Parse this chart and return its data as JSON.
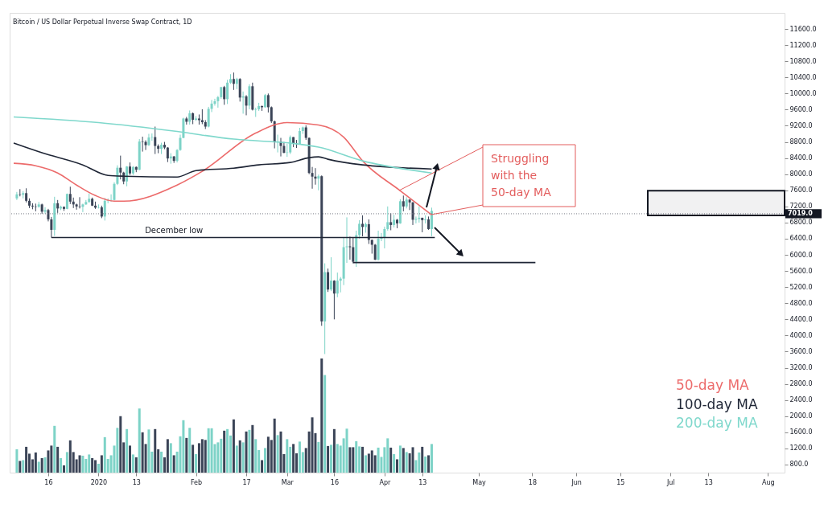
{
  "chart_data": {
    "type": "candlestick",
    "title": "Bitcoin / US Dollar Perpetual Inverse Swap Contract, 1D",
    "x": [
      "2019-12-06",
      "2019-12-07",
      "2019-12-08",
      "2019-12-09",
      "2019-12-10",
      "2019-12-11",
      "2019-12-12",
      "2019-12-13",
      "2019-12-14",
      "2019-12-15",
      "2019-12-16",
      "2019-12-17",
      "2019-12-18",
      "2019-12-19",
      "2019-12-20",
      "2019-12-21",
      "2019-12-22",
      "2019-12-23",
      "2019-12-24",
      "2019-12-25",
      "2019-12-26",
      "2019-12-27",
      "2019-12-28",
      "2019-12-29",
      "2019-12-30",
      "2019-12-31",
      "2020-01-01",
      "2020-01-02",
      "2020-01-03",
      "2020-01-04",
      "2020-01-05",
      "2020-01-06",
      "2020-01-07",
      "2020-01-08",
      "2020-01-09",
      "2020-01-10",
      "2020-01-11",
      "2020-01-12",
      "2020-01-13",
      "2020-01-14",
      "2020-01-15",
      "2020-01-16",
      "2020-01-17",
      "2020-01-18",
      "2020-01-19",
      "2020-01-20",
      "2020-01-21",
      "2020-01-22",
      "2020-01-23",
      "2020-01-24",
      "2020-01-25",
      "2020-01-26",
      "2020-01-27",
      "2020-01-28",
      "2020-01-29",
      "2020-01-30",
      "2020-01-31",
      "2020-02-01",
      "2020-02-02",
      "2020-02-03",
      "2020-02-04",
      "2020-02-05",
      "2020-02-06",
      "2020-02-07",
      "2020-02-08",
      "2020-02-09",
      "2020-02-10",
      "2020-02-11",
      "2020-02-12",
      "2020-02-13",
      "2020-02-14",
      "2020-02-15",
      "2020-02-16",
      "2020-02-17",
      "2020-02-18",
      "2020-02-19",
      "2020-02-20",
      "2020-02-21",
      "2020-02-22",
      "2020-02-23",
      "2020-02-24",
      "2020-02-25",
      "2020-02-26",
      "2020-02-27",
      "2020-02-28",
      "2020-02-29",
      "2020-03-01",
      "2020-03-02",
      "2020-03-03",
      "2020-03-04",
      "2020-03-05",
      "2020-03-06",
      "2020-03-07",
      "2020-03-08",
      "2020-03-09",
      "2020-03-10",
      "2020-03-11",
      "2020-03-12",
      "2020-03-13",
      "2020-03-14",
      "2020-03-15",
      "2020-03-16",
      "2020-03-17",
      "2020-03-18",
      "2020-03-19",
      "2020-03-20",
      "2020-03-21",
      "2020-03-22",
      "2020-03-23",
      "2020-03-24",
      "2020-03-25",
      "2020-03-26",
      "2020-03-27",
      "2020-03-28",
      "2020-03-29",
      "2020-03-30",
      "2020-03-31",
      "2020-04-01",
      "2020-04-02",
      "2020-04-03",
      "2020-04-04",
      "2020-04-05",
      "2020-04-06",
      "2020-04-07",
      "2020-04-08",
      "2020-04-09",
      "2020-04-10",
      "2020-04-11",
      "2020-04-12",
      "2020-04-13",
      "2020-04-14",
      "2020-04-15",
      "2020-04-16"
    ],
    "series": [
      {
        "type": "bar",
        "colors": [
          "#7dd3c7",
          "#3b4457",
          "#7dd3c7",
          "#3b4457",
          "#3b4457",
          "#3b4457",
          "#3b4457",
          "#7dd3c7",
          "#3b4457",
          "#7dd3c7",
          "#3b4457",
          "#3b4457",
          "#7dd3c7",
          "#3b4457",
          "#7dd3c7",
          "#3b4457",
          "#7dd3c7",
          "#3b4457",
          "#3b4457",
          "#3b4457",
          "#3b4457",
          "#7dd3c7",
          "#7dd3c7",
          "#7dd3c7",
          "#3b4457",
          "#3b4457",
          "#7dd3c7",
          "#3b4457",
          "#7dd3c7",
          "#7dd3c7",
          "#7dd3c7",
          "#7dd3c7",
          "#7dd3c7",
          "#3b4457",
          "#3b4457",
          "#7dd3c7",
          "#3b4457",
          "#7dd3c7",
          "#3b4457",
          "#7dd3c7",
          "#3b4457",
          "#3b4457",
          "#7dd3c7",
          "#7dd3c7",
          "#3b4457",
          "#3b4457",
          "#7dd3c7",
          "#3b4457",
          "#3b4457",
          "#7dd3c7",
          "#3b4457",
          "#7dd3c7",
          "#7dd3c7",
          "#7dd3c7",
          "#3b4457",
          "#7dd3c7",
          "#3b4457",
          "#7dd3c7",
          "#3b4457",
          "#3b4457",
          "#3b4457",
          "#7dd3c7",
          "#7dd3c7",
          "#7dd3c7",
          "#7dd3c7",
          "#7dd3c7",
          "#3b4457",
          "#7dd3c7",
          "#7dd3c7",
          "#3b4457",
          "#7dd3c7",
          "#3b4457",
          "#7dd3c7",
          "#3b4457",
          "#7dd3c7",
          "#3b4457",
          "#7dd3c7",
          "#7dd3c7",
          "#3b4457",
          "#7dd3c7",
          "#3b4457",
          "#3b4457",
          "#3b4457",
          "#7dd3c7",
          "#3b4457",
          "#3b4457",
          "#7dd3c7",
          "#7dd3c7",
          "#3b4457",
          "#3b4457",
          "#7dd3c7",
          "#7dd3c7",
          "#3b4457",
          "#3b4457",
          "#3b4457",
          "#3b4457",
          "#7dd3c7",
          "#3b4457",
          "#7dd3c7",
          "#3b4457",
          "#7dd3c7",
          "#3b4457",
          "#7dd3c7",
          "#7dd3c7",
          "#7dd3c7",
          "#7dd3c7",
          "#3b4457",
          "#3b4457",
          "#7dd3c7",
          "#7dd3c7",
          "#3b4457",
          "#7dd3c7",
          "#3b4457",
          "#3b4457",
          "#3b4457",
          "#7dd3c7",
          "#7dd3c7",
          "#7dd3c7",
          "#7dd3c7",
          "#3b4457",
          "#7dd3c7",
          "#3b4457",
          "#7dd3c7",
          "#3b4457",
          "#7dd3c7",
          "#3b4457",
          "#3b4457",
          "#7dd3c7",
          "#7dd3c7",
          "#3b4457",
          "#7dd3c7",
          "#3b4457",
          "#7dd3c7"
        ],
        "values": [
          1180,
          890,
          910,
          1240,
          1070,
          930,
          1100,
          870,
          960,
          980,
          1150,
          1270,
          1760,
          1240,
          960,
          780,
          1110,
          1400,
          1110,
          930,
          1030,
          1020,
          940,
          1050,
          960,
          910,
          820,
          1030,
          1480,
          940,
          1030,
          1270,
          1710,
          2000,
          1350,
          1680,
          1270,
          1050,
          980,
          2190,
          1600,
          1310,
          1670,
          1120,
          1680,
          1180,
          1120,
          980,
          1430,
          1330,
          1030,
          1120,
          1500,
          1900,
          1460,
          1710,
          1290,
          1060,
          1330,
          1430,
          1410,
          1700,
          1700,
          1310,
          1350,
          1440,
          1640,
          1680,
          1520,
          1920,
          1270,
          1400,
          1350,
          1620,
          1660,
          1780,
          1430,
          1160,
          910,
          1210,
          1490,
          1410,
          1940,
          1530,
          1620,
          1060,
          1430,
          1240,
          1310,
          1080,
          1370,
          1110,
          1210,
          1620,
          1970,
          1580,
          1360,
          3430,
          3020,
          1260,
          1290,
          1680,
          1310,
          1270,
          1450,
          1690,
          1230,
          1230,
          1380,
          1250,
          1240,
          1030,
          1070,
          1150,
          1030,
          1220,
          990,
          1230,
          1450,
          1220,
          1060,
          930,
          1270,
          1210,
          1110,
          1080,
          1230,
          910,
          1100,
          1240,
          1000,
          1030,
          1310
        ]
      },
      {
        "colors": [
          "#7dd3c7",
          "#3b4457",
          "#7dd3c7",
          "#3b4457",
          "#3b4457",
          "#3b4457",
          "#3b4457",
          "#7dd3c7",
          "#3b4457",
          "#7dd3c7",
          "#3b4457",
          "#3b4457",
          "#7dd3c7",
          "#3b4457",
          "#7dd3c7",
          "#3b4457",
          "#7dd3c7",
          "#3b4457",
          "#3b4457",
          "#3b4457",
          "#3b4457",
          "#7dd3c7",
          "#7dd3c7",
          "#7dd3c7",
          "#3b4457",
          "#3b4457",
          "#7dd3c7",
          "#3b4457",
          "#7dd3c7",
          "#7dd3c7",
          "#7dd3c7",
          "#7dd3c7",
          "#7dd3c7",
          "#3b4457",
          "#3b4457",
          "#7dd3c7",
          "#3b4457",
          "#7dd3c7",
          "#3b4457",
          "#7dd3c7",
          "#3b4457",
          "#3b4457",
          "#7dd3c7",
          "#7dd3c7",
          "#3b4457",
          "#3b4457",
          "#7dd3c7",
          "#3b4457",
          "#3b4457",
          "#7dd3c7",
          "#3b4457",
          "#7dd3c7",
          "#7dd3c7",
          "#7dd3c7",
          "#3b4457",
          "#7dd3c7",
          "#3b4457",
          "#7dd3c7",
          "#3b4457",
          "#3b4457",
          "#3b4457",
          "#7dd3c7",
          "#7dd3c7",
          "#7dd3c7",
          "#7dd3c7",
          "#7dd3c7",
          "#3b4457",
          "#7dd3c7",
          "#7dd3c7",
          "#3b4457",
          "#7dd3c7",
          "#3b4457",
          "#7dd3c7",
          "#3b4457",
          "#7dd3c7",
          "#3b4457",
          "#7dd3c7",
          "#7dd3c7",
          "#3b4457",
          "#7dd3c7",
          "#3b4457",
          "#3b4457",
          "#3b4457",
          "#7dd3c7",
          "#3b4457",
          "#3b4457",
          "#7dd3c7",
          "#7dd3c7",
          "#3b4457",
          "#3b4457",
          "#7dd3c7",
          "#7dd3c7",
          "#3b4457",
          "#3b4457",
          "#3b4457",
          "#3b4457",
          "#7dd3c7",
          "#3b4457",
          "#7dd3c7",
          "#3b4457",
          "#7dd3c7",
          "#3b4457",
          "#7dd3c7",
          "#7dd3c7",
          "#7dd3c7",
          "#7dd3c7",
          "#3b4457",
          "#3b4457",
          "#7dd3c7",
          "#7dd3c7",
          "#3b4457",
          "#7dd3c7",
          "#3b4457",
          "#3b4457",
          "#3b4457",
          "#7dd3c7",
          "#7dd3c7",
          "#7dd3c7",
          "#7dd3c7",
          "#3b4457",
          "#7dd3c7",
          "#3b4457",
          "#7dd3c7",
          "#3b4457",
          "#7dd3c7",
          "#3b4457",
          "#3b4457",
          "#7dd3c7",
          "#7dd3c7",
          "#3b4457",
          "#7dd3c7",
          "#3b4457",
          "#7dd3c7"
        ],
        "ohlc": [
          [
            7400,
            7560,
            7360,
            7500
          ],
          [
            7500,
            7630,
            7450,
            7490
          ],
          [
            7490,
            7580,
            7400,
            7530
          ],
          [
            7530,
            7650,
            7300,
            7340
          ],
          [
            7340,
            7400,
            7160,
            7220
          ],
          [
            7220,
            7280,
            7130,
            7200
          ],
          [
            7200,
            7270,
            7080,
            7190
          ],
          [
            7190,
            7310,
            7170,
            7250
          ],
          [
            7250,
            7270,
            7020,
            7070
          ],
          [
            7070,
            7180,
            7020,
            7110
          ],
          [
            7110,
            7140,
            6830,
            6880
          ],
          [
            6880,
            6940,
            6430,
            6620
          ],
          [
            6620,
            7440,
            6470,
            7280
          ],
          [
            7280,
            7360,
            7040,
            7150
          ],
          [
            7150,
            7220,
            7110,
            7190
          ],
          [
            7190,
            7200,
            7090,
            7140
          ],
          [
            7140,
            7520,
            7130,
            7510
          ],
          [
            7510,
            7690,
            7260,
            7320
          ],
          [
            7320,
            7420,
            7160,
            7250
          ],
          [
            7250,
            7270,
            7120,
            7200
          ],
          [
            7200,
            7430,
            7150,
            7190
          ],
          [
            7190,
            7270,
            7060,
            7250
          ],
          [
            7250,
            7360,
            7240,
            7310
          ],
          [
            7310,
            7520,
            7290,
            7390
          ],
          [
            7390,
            7420,
            7210,
            7220
          ],
          [
            7220,
            7320,
            7140,
            7170
          ],
          [
            7170,
            7250,
            7150,
            7180
          ],
          [
            7180,
            7220,
            6910,
            6950
          ],
          [
            6950,
            7410,
            6850,
            7340
          ],
          [
            7340,
            7400,
            7280,
            7350
          ],
          [
            7350,
            7500,
            7320,
            7360
          ],
          [
            7360,
            7800,
            7350,
            7760
          ],
          [
            7760,
            8220,
            7730,
            8160
          ],
          [
            8160,
            8460,
            7870,
            8040
          ],
          [
            8040,
            8060,
            7750,
            7820
          ],
          [
            7820,
            8200,
            7700,
            8190
          ],
          [
            8190,
            8290,
            7980,
            8020
          ],
          [
            8020,
            8200,
            7980,
            8180
          ],
          [
            8180,
            8190,
            8050,
            8110
          ],
          [
            8110,
            8870,
            8100,
            8810
          ],
          [
            8810,
            8930,
            8560,
            8800
          ],
          [
            8800,
            8840,
            8600,
            8720
          ],
          [
            8720,
            9000,
            8700,
            8910
          ],
          [
            8910,
            9010,
            8830,
            8920
          ],
          [
            8920,
            9180,
            8500,
            8700
          ],
          [
            8700,
            8740,
            8520,
            8630
          ],
          [
            8630,
            8780,
            8500,
            8730
          ],
          [
            8730,
            8800,
            8620,
            8660
          ],
          [
            8660,
            8670,
            8300,
            8390
          ],
          [
            8390,
            8520,
            8260,
            8440
          ],
          [
            8440,
            8450,
            8280,
            8330
          ],
          [
            8330,
            8620,
            8290,
            8600
          ],
          [
            8600,
            8980,
            8580,
            8900
          ],
          [
            8900,
            9400,
            8890,
            9380
          ],
          [
            9380,
            9420,
            9230,
            9300
          ],
          [
            9300,
            9580,
            9230,
            9510
          ],
          [
            9510,
            9530,
            9240,
            9350
          ],
          [
            9350,
            9440,
            9320,
            9380
          ],
          [
            9380,
            9480,
            9230,
            9340
          ],
          [
            9340,
            9610,
            9240,
            9290
          ],
          [
            9290,
            9340,
            9120,
            9180
          ],
          [
            9180,
            9670,
            9160,
            9620
          ],
          [
            9620,
            9840,
            9540,
            9750
          ],
          [
            9750,
            9870,
            9700,
            9810
          ],
          [
            9810,
            9940,
            9650,
            9910
          ],
          [
            9910,
            10160,
            9870,
            10160
          ],
          [
            10160,
            10190,
            9720,
            9860
          ],
          [
            9860,
            10340,
            9740,
            10270
          ],
          [
            10270,
            10480,
            10240,
            10360
          ],
          [
            10360,
            10520,
            10090,
            10240
          ],
          [
            10240,
            10390,
            10110,
            10360
          ],
          [
            10360,
            10380,
            9800,
            9900
          ],
          [
            9900,
            10050,
            9500,
            9930
          ],
          [
            9930,
            9960,
            9460,
            9700
          ],
          [
            9700,
            10230,
            9610,
            10180
          ],
          [
            10180,
            10270,
            9580,
            9600
          ],
          [
            9600,
            9650,
            9420,
            9610
          ],
          [
            9610,
            9770,
            9570,
            9690
          ],
          [
            9690,
            9700,
            9570,
            9660
          ],
          [
            9660,
            9990,
            9650,
            9960
          ],
          [
            9960,
            10000,
            9530,
            9660
          ],
          [
            9660,
            9680,
            9270,
            9310
          ],
          [
            9310,
            9330,
            8640,
            8790
          ],
          [
            8790,
            8980,
            8540,
            8810
          ],
          [
            8810,
            8900,
            8440,
            8700
          ],
          [
            8700,
            8800,
            8520,
            8530
          ],
          [
            8530,
            8750,
            8430,
            8540
          ],
          [
            8540,
            8960,
            8500,
            8920
          ],
          [
            8920,
            8920,
            8670,
            8760
          ],
          [
            8760,
            8850,
            8650,
            8750
          ],
          [
            8750,
            9150,
            8740,
            9070
          ],
          [
            9070,
            9180,
            9000,
            9160
          ],
          [
            9160,
            9210,
            8850,
            8900
          ],
          [
            8900,
            8910,
            8000,
            8030
          ],
          [
            8030,
            8180,
            7640,
            7940
          ],
          [
            7940,
            8150,
            7740,
            7890
          ],
          [
            7890,
            7990,
            7600,
            7950
          ],
          [
            7950,
            7970,
            4240,
            4350
          ],
          [
            4350,
            5790,
            3540,
            5570
          ],
          [
            5570,
            5660,
            5080,
            5140
          ],
          [
            5140,
            5940,
            5100,
            5360
          ],
          [
            5360,
            5370,
            4400,
            5040
          ],
          [
            5040,
            5560,
            4950,
            5360
          ],
          [
            5360,
            5450,
            5070,
            5410
          ],
          [
            5410,
            6420,
            5250,
            6190
          ],
          [
            6190,
            6930,
            5800,
            6210
          ],
          [
            6210,
            6450,
            5880,
            6190
          ],
          [
            6190,
            6420,
            5790,
            5830
          ],
          [
            5830,
            6600,
            5700,
            6490
          ],
          [
            6490,
            6860,
            6400,
            6770
          ],
          [
            6770,
            6980,
            6460,
            6690
          ],
          [
            6690,
            6800,
            6550,
            6760
          ],
          [
            6760,
            6880,
            6270,
            6370
          ],
          [
            6370,
            6380,
            6030,
            6250
          ],
          [
            6250,
            6270,
            5870,
            5880
          ],
          [
            5880,
            6600,
            5860,
            6400
          ],
          [
            6400,
            6540,
            6340,
            6420
          ],
          [
            6420,
            6700,
            6160,
            6640
          ],
          [
            6640,
            7200,
            6600,
            6810
          ],
          [
            6810,
            7030,
            6610,
            6740
          ],
          [
            6740,
            6990,
            6680,
            6870
          ],
          [
            6870,
            6890,
            6660,
            6780
          ],
          [
            6780,
            7380,
            6770,
            7330
          ],
          [
            7330,
            7470,
            7080,
            7200
          ],
          [
            7200,
            7430,
            7150,
            7370
          ],
          [
            7370,
            7380,
            7110,
            7300
          ],
          [
            7300,
            7310,
            6740,
            6870
          ],
          [
            6870,
            6950,
            6780,
            6890
          ],
          [
            6890,
            7200,
            6800,
            6920
          ],
          [
            6920,
            6920,
            6560,
            6860
          ],
          [
            6860,
            6980,
            6780,
            6880
          ],
          [
            6880,
            6950,
            6620,
            6640
          ],
          [
            6640,
            7170,
            6460,
            7090
          ]
        ]
      },
      {
        "type": "line",
        "name": "50-day MA",
        "color": "#ec6b6b",
        "x": [
          "2019-12-05",
          "2019-12-12",
          "2019-12-19",
          "2019-12-25",
          "2019-12-31",
          "2020-01-06",
          "2020-01-09",
          "2020-01-26",
          "2020-02-03",
          "2020-02-20",
          "2020-03-01",
          "2020-03-11",
          "2020-03-19",
          "2020-03-25",
          "2020-04-06",
          "2020-04-16"
        ],
        "values": [
          8270,
          8210,
          8030,
          7730,
          7470,
          7330,
          7330,
          7730,
          8070,
          9020,
          9280,
          9220,
          8920,
          8330,
          7590,
          6990
        ]
      },
      {
        "type": "line",
        "name": "100-day MA",
        "color": "#1f2636",
        "x": [
          "2019-12-05",
          "2019-12-14",
          "2019-12-27",
          "2020-01-04",
          "2020-01-09",
          "2020-01-26",
          "2020-02-01",
          "2020-02-13",
          "2020-02-21",
          "2020-03-02",
          "2020-03-08",
          "2020-03-11",
          "2020-03-14",
          "2020-03-25",
          "2020-04-16"
        ],
        "values": [
          8770,
          8530,
          8230,
          7970,
          7950,
          7930,
          8090,
          8150,
          8230,
          8290,
          8410,
          8430,
          8370,
          8230,
          8130
        ]
      },
      {
        "type": "line",
        "name": "200-day MA",
        "color": "#7fd8cc",
        "x": [
          "2019-12-05",
          "2020-01-01",
          "2020-01-26",
          "2020-02-13",
          "2020-02-20",
          "2020-03-02",
          "2020-03-11",
          "2020-03-25",
          "2020-04-16"
        ],
        "values": [
          9420,
          9280,
          9060,
          8870,
          8830,
          8770,
          8670,
          8330,
          8030
        ]
      },
      {
        "type": "line",
        "color": "#1f2636",
        "x": [
          "2019-12-17",
          "2020-04-17"
        ],
        "values": [
          6430,
          6430
        ]
      },
      {
        "type": "line",
        "color": "#1f2636",
        "x": [
          "2020-03-22",
          "2020-05-19"
        ],
        "values": [
          5810,
          5810
        ]
      }
    ],
    "xlim": [
      "2019-12-05",
      "2020-08-05"
    ],
    "xticks": [
      {
        "value": "2019-12-16",
        "label": "16"
      },
      {
        "value": "2020-01-01",
        "label": "2020"
      },
      {
        "value": "2020-01-13",
        "label": "13"
      },
      {
        "value": "2020-02-01",
        "label": "Feb"
      },
      {
        "value": "2020-02-17",
        "label": "17"
      },
      {
        "value": "2020-03-01",
        "label": "Mar"
      },
      {
        "value": "2020-03-16",
        "label": "16"
      },
      {
        "value": "2020-04-01",
        "label": "Apr"
      },
      {
        "value": "2020-04-13",
        "label": "13"
      },
      {
        "value": "2020-05-01",
        "label": "May"
      },
      {
        "value": "2020-05-18",
        "label": "18"
      },
      {
        "value": "2020-06-01",
        "label": "Jun"
      },
      {
        "value": "2020-06-15",
        "label": "15"
      },
      {
        "value": "2020-07-01",
        "label": "Jul"
      },
      {
        "value": "2020-07-13",
        "label": "13"
      },
      {
        "value": "2020-08-01",
        "label": "Aug"
      }
    ],
    "ylim": [
      600,
      12000
    ],
    "yticks": [
      {
        "value": 800,
        "label": "800.0"
      },
      {
        "value": 1200,
        "label": "1200.0"
      },
      {
        "value": 1600,
        "label": "1600.0"
      },
      {
        "value": 2000,
        "label": "2000.0"
      },
      {
        "value": 2400,
        "label": "2400.0"
      },
      {
        "value": 2800,
        "label": "2800.0"
      },
      {
        "value": 3200,
        "label": "3200.0"
      },
      {
        "value": 3600,
        "label": "3600.0"
      },
      {
        "value": 4000,
        "label": "4000.0"
      },
      {
        "value": 4400,
        "label": "4400.0"
      },
      {
        "value": 4800,
        "label": "4800.0"
      },
      {
        "value": 5200,
        "label": "5200.0"
      },
      {
        "value": 5600,
        "label": "5600.0"
      },
      {
        "value": 6000,
        "label": "6000.0"
      },
      {
        "value": 6400,
        "label": "6400.0"
      },
      {
        "value": 6800,
        "label": "6800.0"
      },
      {
        "value": 7200,
        "label": "7200.0"
      },
      {
        "value": 7600,
        "label": "7600.0"
      },
      {
        "value": 8000,
        "label": "8000.0"
      },
      {
        "value": 8400,
        "label": "8400.0"
      },
      {
        "value": 8800,
        "label": "8800.0"
      },
      {
        "value": 9200,
        "label": "9200.0"
      },
      {
        "value": 9600,
        "label": "9600.0"
      },
      {
        "value": 10000,
        "label": "10000.0"
      },
      {
        "value": 10400,
        "label": "10400.0"
      },
      {
        "value": 10800,
        "label": "10800.0"
      },
      {
        "value": 11200,
        "label": "11200.0"
      },
      {
        "value": 11600,
        "label": "11600.0"
      }
    ],
    "ref_lines": [
      {
        "axis": "y",
        "value": 7019,
        "label": "7019.0",
        "color": "#787b86",
        "line_style": "dotted"
      }
    ],
    "bands": [
      {
        "axis": "y",
        "from": 6980,
        "to": 7590,
        "color": "#131722"
      }
    ],
    "annotations": [
      {
        "text": "December low",
        "x": "2020-01-25",
        "y": 6430
      },
      {
        "text": "Struggling\nwith the\n50-day MA",
        "x": "2020-04-16",
        "y": 7000
      }
    ],
    "legend": "bottom right"
  }
}
